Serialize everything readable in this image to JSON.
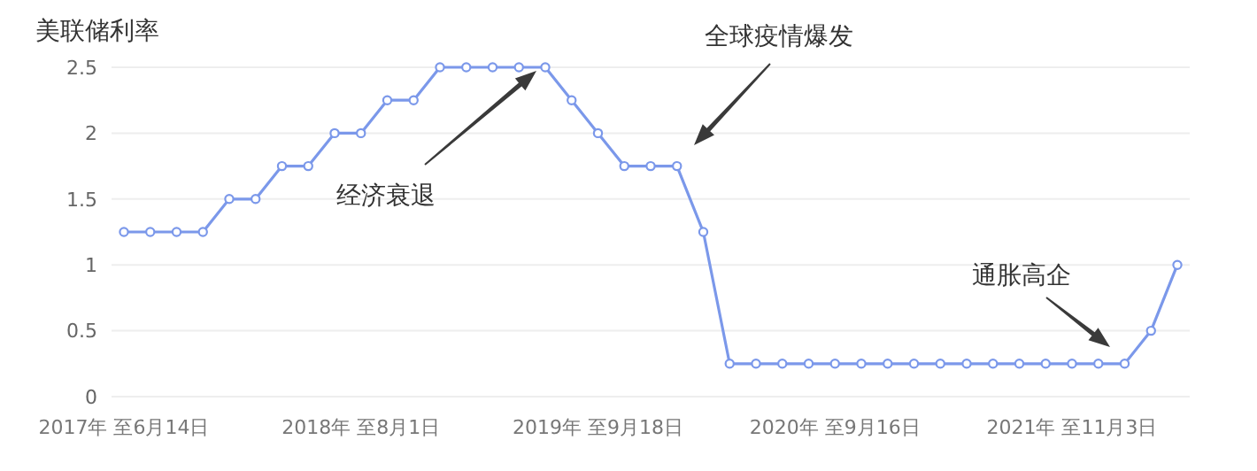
{
  "chart_data": {
    "type": "line",
    "title": "美联储利率",
    "categories": [
      "2017年 至6月14日",
      null,
      null,
      null,
      null,
      null,
      null,
      null,
      null,
      "2018年 至8月1日",
      null,
      null,
      null,
      null,
      null,
      null,
      null,
      null,
      "2019年 至9月18日",
      null,
      null,
      null,
      null,
      null,
      null,
      null,
      null,
      "2020年 至9月16日",
      null,
      null,
      null,
      null,
      null,
      null,
      null,
      null,
      "2021年 至11月3日",
      null,
      null,
      null,
      null
    ],
    "series": [
      {
        "color": "#7b98ea",
        "values": [
          1.25,
          1.25,
          1.25,
          1.25,
          1.5,
          1.5,
          1.75,
          1.75,
          2,
          2,
          2.25,
          2.25,
          2.5,
          2.5,
          2.5,
          2.5,
          2.5,
          2.25,
          2,
          1.75,
          1.75,
          1.75,
          1.25,
          0.25,
          0.25,
          0.25,
          0.25,
          0.25,
          0.25,
          0.25,
          0.25,
          0.25,
          0.25,
          0.25,
          0.25,
          0.25,
          0.25,
          0.25,
          0.25,
          0.5,
          1
        ]
      }
    ],
    "ylim": [
      0,
      2.5
    ],
    "yticks": [
      0,
      0.5,
      1,
      1.5,
      2,
      2.5
    ],
    "grid": "y",
    "marker": "circle",
    "annotations": [
      "经济衰退",
      "全球疫情爆发",
      "通胀高企"
    ]
  }
}
